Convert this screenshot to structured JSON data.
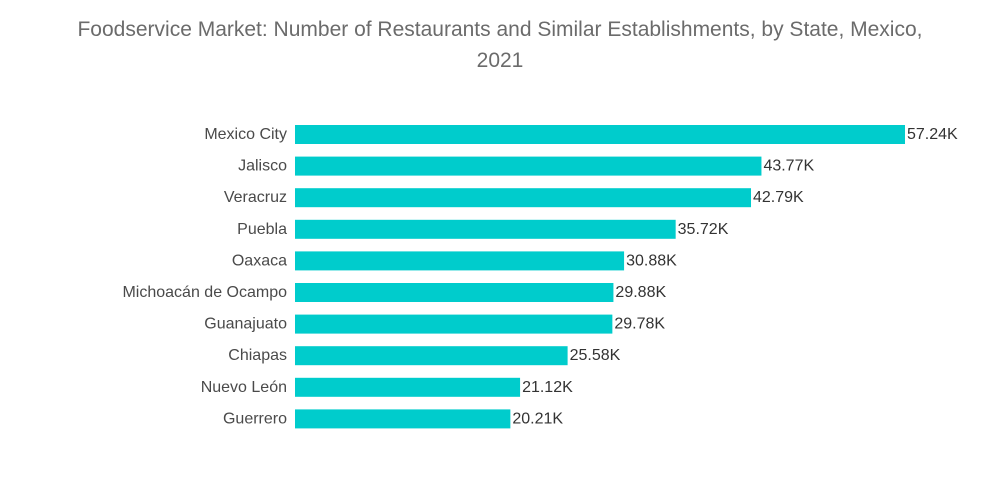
{
  "chart_data": {
    "type": "bar",
    "orientation": "horizontal",
    "title": "Foodservice Market: Number of Restaurants and Similar Establishments, by State, Mexico, 2021",
    "categories": [
      "Mexico City",
      "Jalisco",
      "Veracruz",
      "Puebla",
      "Oaxaca",
      "Michoacán de Ocampo",
      "Guanajuato",
      "Chiapas",
      "Nuevo León",
      "Guerrero"
    ],
    "values": [
      57.24,
      43.77,
      42.79,
      35.72,
      30.88,
      29.88,
      29.78,
      25.58,
      21.12,
      20.21
    ],
    "value_labels": [
      "57.24K",
      "43.77K",
      "42.79K",
      "35.72K",
      "30.88K",
      "29.88K",
      "29.78K",
      "25.58K",
      "21.12K",
      "20.21K"
    ],
    "xlabel": "",
    "ylabel": "",
    "xlim": [
      0,
      57.24
    ],
    "grid": false,
    "legend": "none",
    "bar_color": "#00cccc"
  }
}
